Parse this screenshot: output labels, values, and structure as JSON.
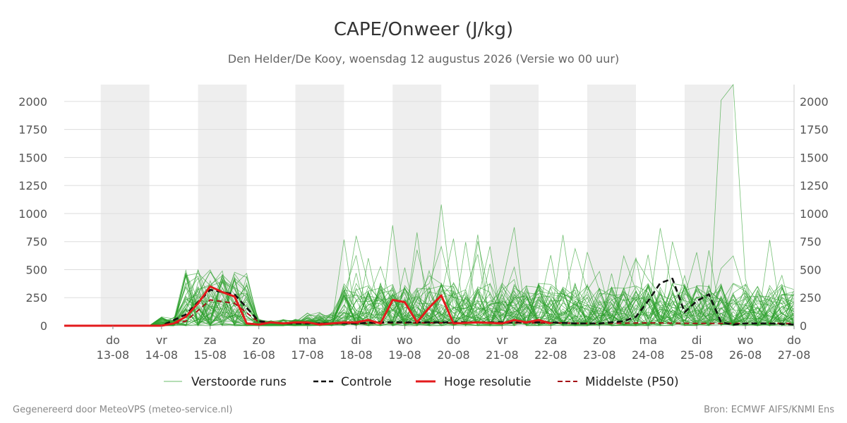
{
  "title": "CAPE/Onweer (J/kg)",
  "subtitle": "Den Helder/De Kooy, woensdag 12 augustus 2026 (Versie wo 00 uur)",
  "footer_left": "Gegenereerd door MeteoVPS (meteo-service.nl)",
  "footer_right": "Bron: ECMWF AIFS/KNMI Ens",
  "colors": {
    "ensemble": "#2ca02c",
    "control": "#111111",
    "highres": "#e31a1c",
    "median": "#a50f15",
    "shade": "#eeeeee",
    "grid": "#dddddd"
  },
  "chart_data": {
    "type": "line",
    "x_unit": "days since 12-08 00:00 (tick every 24h)",
    "xlim": [
      0,
      15
    ],
    "ylim": [
      0,
      2150
    ],
    "y_ticks": [
      0,
      250,
      500,
      750,
      1000,
      1250,
      1500,
      1750,
      2000
    ],
    "x_ticks": [
      {
        "x": 1,
        "day": "do",
        "date": "13-08"
      },
      {
        "x": 2,
        "day": "vr",
        "date": "14-08"
      },
      {
        "x": 3,
        "day": "za",
        "date": "15-08"
      },
      {
        "x": 4,
        "day": "zo",
        "date": "16-08"
      },
      {
        "x": 5,
        "day": "ma",
        "date": "17-08"
      },
      {
        "x": 6,
        "day": "di",
        "date": "18-08"
      },
      {
        "x": 7,
        "day": "wo",
        "date": "19-08"
      },
      {
        "x": 8,
        "day": "do",
        "date": "20-08"
      },
      {
        "x": 9,
        "day": "vr",
        "date": "21-08"
      },
      {
        "x": 10,
        "day": "za",
        "date": "22-08"
      },
      {
        "x": 11,
        "day": "zo",
        "date": "23-08"
      },
      {
        "x": 12,
        "day": "ma",
        "date": "24-08"
      },
      {
        "x": 13,
        "day": "di",
        "date": "25-08"
      },
      {
        "x": 14,
        "day": "wo",
        "date": "26-08"
      },
      {
        "x": 15,
        "day": "do",
        "date": "27-08"
      }
    ],
    "weekend_shading": [
      [
        0.75,
        1.75
      ],
      [
        2.75,
        3.75
      ],
      [
        4.75,
        5.75
      ],
      [
        6.75,
        7.75
      ],
      [
        8.75,
        9.75
      ],
      [
        10.75,
        11.75
      ],
      [
        12.75,
        13.75
      ]
    ],
    "legend": [
      {
        "label": "Verstoorde runs",
        "style": "thin"
      },
      {
        "label": "Controle",
        "style": "dashed-black"
      },
      {
        "label": "Hoge resolutie",
        "style": "thick-red"
      },
      {
        "label": "Middelste (P50)",
        "style": "dashed-red"
      }
    ],
    "series": [
      {
        "name": "Controle",
        "x": [
          0,
          1,
          2,
          2.5,
          3,
          3.5,
          4,
          4.5,
          5,
          5.5,
          6,
          6.5,
          7,
          7.5,
          8,
          8.5,
          9,
          9.5,
          10,
          10.5,
          11,
          11.5,
          11.75,
          12,
          12.25,
          12.5,
          12.75,
          13,
          13.25,
          13.5,
          13.75,
          14,
          14.5,
          15
        ],
        "y": [
          0,
          0,
          0,
          100,
          320,
          280,
          40,
          20,
          20,
          20,
          20,
          30,
          30,
          30,
          30,
          30,
          30,
          30,
          30,
          20,
          20,
          40,
          80,
          220,
          380,
          420,
          120,
          220,
          280,
          30,
          10,
          20,
          20,
          10
        ]
      },
      {
        "name": "Hoge resolutie",
        "x": [
          0,
          1,
          2,
          2.25,
          2.5,
          2.75,
          3,
          3.25,
          3.5,
          3.75,
          4,
          4.25,
          4.5,
          4.75,
          5,
          5.25,
          5.5,
          5.75,
          6,
          6.25,
          6.5,
          6.75,
          7,
          7.25,
          7.5,
          7.75,
          8,
          8.5,
          9,
          9.25,
          9.5,
          9.75,
          10
        ],
        "y": [
          0,
          0,
          0,
          20,
          80,
          200,
          350,
          300,
          260,
          20,
          10,
          30,
          20,
          30,
          30,
          10,
          20,
          30,
          30,
          50,
          20,
          230,
          210,
          30,
          160,
          270,
          20,
          30,
          20,
          50,
          30,
          50,
          20
        ]
      },
      {
        "name": "Middelste (P50)",
        "x": [
          0,
          1,
          2,
          2.5,
          3,
          3.5,
          4,
          5,
          6,
          7,
          8,
          9,
          10,
          11,
          12,
          13,
          14,
          15
        ],
        "y": [
          0,
          0,
          0,
          40,
          230,
          200,
          30,
          20,
          20,
          25,
          25,
          25,
          25,
          20,
          25,
          20,
          20,
          20
        ]
      }
    ]
  }
}
